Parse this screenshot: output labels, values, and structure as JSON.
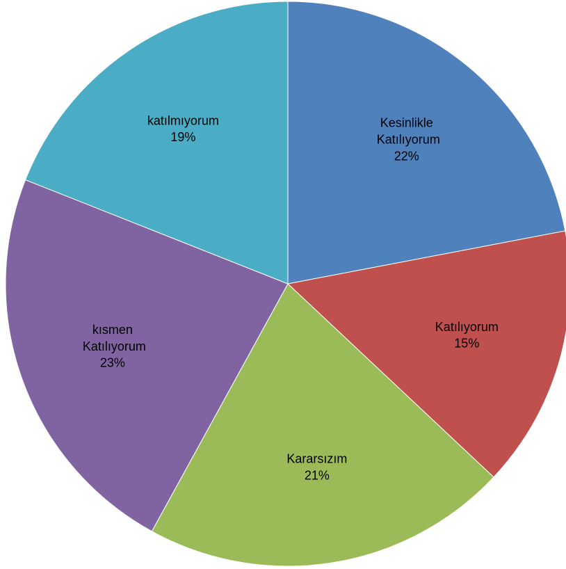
{
  "chart_data": {
    "type": "pie",
    "categories": [
      "Kesinlikle Katılıyorum",
      "Katılıyorum",
      "Kararsızım",
      "kısmen Katılıyorum",
      "katılmıyorum"
    ],
    "values": [
      22,
      15,
      21,
      23,
      19
    ],
    "value_labels": [
      "22%",
      "15%",
      "21%",
      "23%",
      "19%"
    ],
    "colors": [
      "#4f81bd",
      "#c0504d",
      "#9bbb59",
      "#8064a2",
      "#4bacc6"
    ]
  }
}
